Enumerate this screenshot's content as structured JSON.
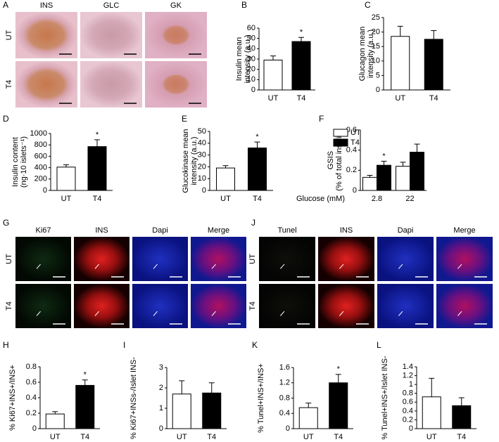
{
  "chart_data": [
    {
      "panel": "B",
      "type": "bar",
      "y_label": [
        "Insulin mean",
        "intensity (a.u.)"
      ],
      "categories": [
        "UT",
        "T4"
      ],
      "values": [
        29,
        47
      ],
      "errors": [
        4,
        4
      ],
      "colors": [
        "#ffffff",
        "#000000"
      ],
      "ylim": [
        0,
        60
      ],
      "yticks": [
        0,
        10,
        20,
        30,
        40,
        50,
        60
      ],
      "annotations": [
        {
          "text": "*",
          "at": "T4"
        }
      ]
    },
    {
      "panel": "C",
      "type": "bar",
      "y_label": [
        "Glucagon mean",
        "intensity (a.u.)"
      ],
      "categories": [
        "UT",
        "T4"
      ],
      "values": [
        18.5,
        17.5
      ],
      "errors": [
        3.5,
        3
      ],
      "colors": [
        "#ffffff",
        "#000000"
      ],
      "ylim": [
        0,
        25
      ],
      "yticks": [
        0,
        5,
        10,
        15,
        20,
        25
      ]
    },
    {
      "panel": "D",
      "type": "bar",
      "y_label": [
        "Insulin content",
        "(ng·10 islets⁻¹)"
      ],
      "categories": [
        "UT",
        "T4"
      ],
      "values": [
        410,
        770
      ],
      "errors": [
        40,
        120
      ],
      "colors": [
        "#ffffff",
        "#000000"
      ],
      "ylim": [
        0,
        1000
      ],
      "yticks": [
        0,
        200,
        400,
        600,
        800,
        1000
      ],
      "annotations": [
        {
          "text": "*",
          "at": "T4"
        }
      ]
    },
    {
      "panel": "E",
      "type": "bar",
      "y_label": [
        "Glucokinase mean",
        "intensity (a.u.)"
      ],
      "categories": [
        "UT",
        "T4"
      ],
      "values": [
        19,
        36
      ],
      "errors": [
        2,
        5
      ],
      "colors": [
        "#ffffff",
        "#000000"
      ],
      "ylim": [
        0,
        50
      ],
      "yticks": [
        0,
        10,
        20,
        30,
        40,
        50
      ],
      "annotations": [
        {
          "text": "*",
          "at": "T4"
        }
      ]
    },
    {
      "panel": "F",
      "type": "grouped-bar",
      "y_label": [
        "GSIS",
        "(% of total insulin)"
      ],
      "x_label": "Glucose (mM)",
      "categories": [
        "2.8",
        "22"
      ],
      "series": [
        {
          "name": "UT",
          "color": "#ffffff",
          "values": [
            0.13,
            0.24
          ],
          "errors": [
            0.02,
            0.04
          ]
        },
        {
          "name": "T4",
          "color": "#000000",
          "values": [
            0.25,
            0.38
          ],
          "errors": [
            0.04,
            0.08
          ]
        }
      ],
      "ylim": [
        0,
        0.6
      ],
      "yticks": [
        0,
        0.2,
        0.4,
        0.6
      ],
      "legend": "upper left",
      "annotations": [
        {
          "text": "*",
          "at": "2.8",
          "series": "T4"
        }
      ]
    },
    {
      "panel": "H",
      "type": "bar",
      "y_label": [
        "% Ki67+INS+/INS+"
      ],
      "categories": [
        "UT",
        "T4"
      ],
      "values": [
        0.19,
        0.56
      ],
      "errors": [
        0.03,
        0.07
      ],
      "colors": [
        "#ffffff",
        "#000000"
      ],
      "ylim": [
        0,
        0.8
      ],
      "yticks": [
        0,
        0.2,
        0.4,
        0.6,
        0.8
      ],
      "annotations": [
        {
          "text": "*",
          "at": "T4"
        }
      ]
    },
    {
      "panel": "I",
      "type": "bar",
      "y_label": [
        "% Ki67+INSs-/Islet INS-"
      ],
      "categories": [
        "UT",
        "T4"
      ],
      "values": [
        1.7,
        1.75
      ],
      "errors": [
        0.65,
        0.5
      ],
      "colors": [
        "#ffffff",
        "#000000"
      ],
      "ylim": [
        0,
        3
      ],
      "yticks": [
        0,
        1,
        2,
        3
      ]
    },
    {
      "panel": "K",
      "type": "bar",
      "y_label": [
        "% Tunel+INS+/INS+"
      ],
      "categories": [
        "UT",
        "T4"
      ],
      "values": [
        0.55,
        1.2
      ],
      "errors": [
        0.12,
        0.22
      ],
      "colors": [
        "#ffffff",
        "#000000"
      ],
      "ylim": [
        0,
        1.6
      ],
      "yticks": [
        0,
        0.4,
        0.8,
        1.2,
        1.6
      ],
      "annotations": [
        {
          "text": "*",
          "at": "T4"
        }
      ]
    },
    {
      "panel": "L",
      "type": "bar",
      "y_label": [
        "% Tunel+INS+/Islet INS-"
      ],
      "categories": [
        "UT",
        "T4"
      ],
      "values": [
        0.72,
        0.52
      ],
      "errors": [
        0.42,
        0.18
      ],
      "colors": [
        "#ffffff",
        "#000000"
      ],
      "ylim": [
        0,
        1.4
      ],
      "yticks": [
        0,
        0.2,
        0.4,
        0.6,
        0.8,
        1.0,
        1.2,
        1.4
      ]
    }
  ],
  "image_panels": [
    {
      "panel": "A",
      "columns": [
        "INS",
        "GLC",
        "GK"
      ],
      "rows": [
        "UT",
        "T4"
      ]
    },
    {
      "panel": "G",
      "columns": [
        "Ki67",
        "INS",
        "Dapi",
        "Merge"
      ],
      "rows": [
        "UT",
        "T4"
      ]
    },
    {
      "panel": "J",
      "columns": [
        "Tunel",
        "INS",
        "Dapi",
        "Merge"
      ],
      "rows": [
        "UT",
        "T4"
      ]
    }
  ]
}
